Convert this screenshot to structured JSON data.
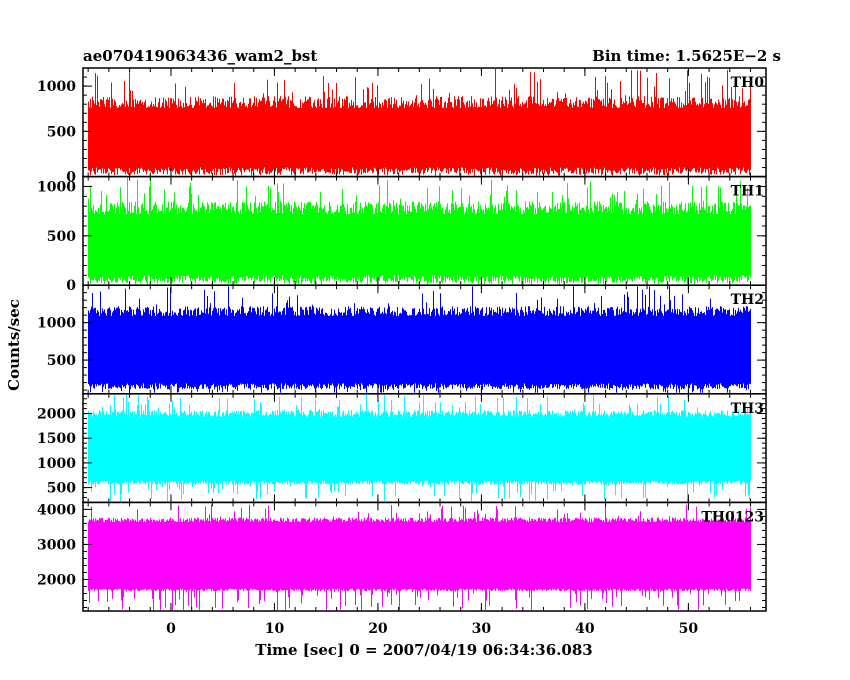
{
  "chart_data": {
    "type": "line",
    "title_left": "ae070419063436_wam2_bst",
    "title_right": "Bin time: 1.5625E−2 s",
    "xlabel": "Time [sec] 0 = 2007/04/19 06:34:36.083",
    "ylabel": "Counts/sec",
    "xlim": [
      -8.5,
      57.5
    ],
    "x_data_range": [
      -8,
      56
    ],
    "x_ticks": [
      0,
      10,
      20,
      30,
      40,
      50
    ],
    "x_tick_labels": [
      "0",
      "10",
      "20",
      "30",
      "40",
      "50"
    ],
    "grid": false,
    "series": [
      {
        "name": "TH0",
        "color": "#ff0000",
        "ylim": [
          0,
          1200
        ],
        "y_ticks": [
          0,
          500,
          1000
        ],
        "y_tick_labels": [
          "0",
          "500",
          "1000"
        ],
        "typical_low": 60,
        "typical_high": 820,
        "spike_max": 1200
      },
      {
        "name": "TH1",
        "color": "#00ff00",
        "ylim": [
          0,
          1100
        ],
        "y_ticks": [
          0,
          500,
          1000
        ],
        "y_tick_labels": [
          "0",
          "500",
          "1000"
        ],
        "typical_low": 60,
        "typical_high": 780,
        "spike_max": 1100
      },
      {
        "name": "TH2",
        "color": "#0000ff",
        "ylim": [
          50,
          1500
        ],
        "y_ticks": [
          500,
          1000
        ],
        "y_tick_labels": [
          "500",
          "1000"
        ],
        "typical_low": 150,
        "typical_high": 1150,
        "spike_max": 1500
      },
      {
        "name": "TH3",
        "color": "#00ffff",
        "ylim": [
          200,
          2400
        ],
        "y_ticks": [
          500,
          1000,
          1500,
          2000
        ],
        "y_tick_labels": [
          "500",
          "1000",
          "1500",
          "2000"
        ],
        "typical_low": 600,
        "typical_high": 2000,
        "spike_max": 2400
      },
      {
        "name": "TH0123",
        "color": "#ff00ff",
        "ylim": [
          1100,
          4200
        ],
        "y_ticks": [
          2000,
          3000,
          4000
        ],
        "y_tick_labels": [
          "2000",
          "3000",
          "4000"
        ],
        "typical_low": 1700,
        "typical_high": 3700,
        "spike_max": 4150
      }
    ]
  }
}
